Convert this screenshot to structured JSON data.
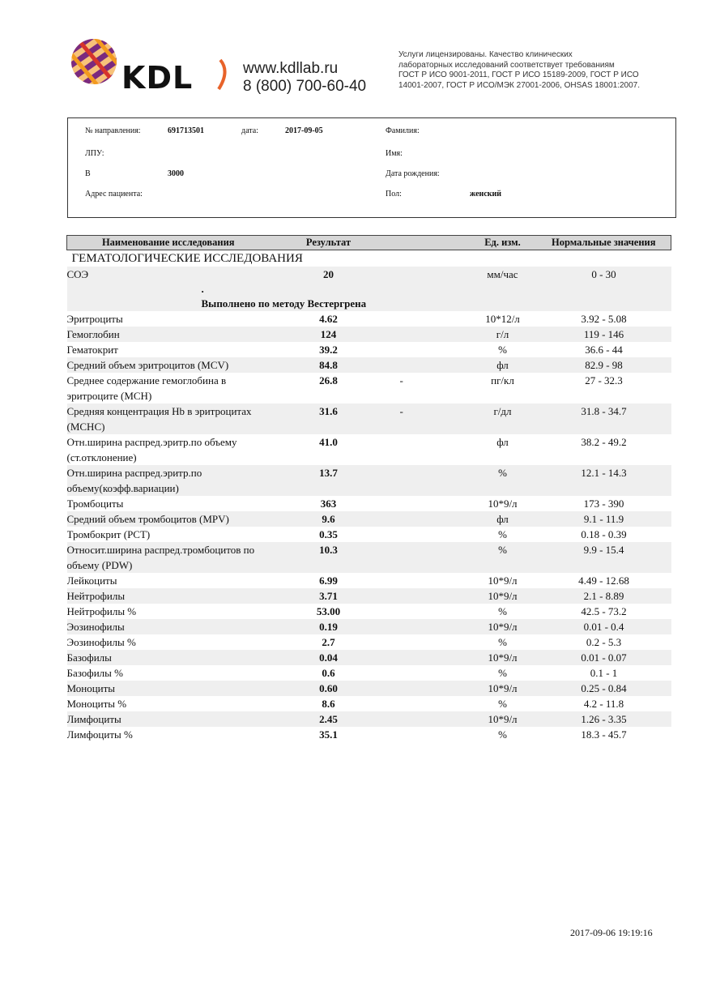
{
  "header": {
    "logo_text": "KDL",
    "website": "www.kdllab.ru",
    "phone": "8 (800) 700-60-40",
    "license_lines": [
      "Услуги лицензированы. Качество клинических",
      "лабораторных исследований соответствует требованиям",
      "ГОСТ Р ИСО 9001-2011, ГОСТ Р ИСО 15189-2009, ГОСТ Р ИСО",
      "14001-2007, ГОСТ Р ИСО/МЭК 27001-2006, OHSAS 18001:2007."
    ]
  },
  "info": {
    "referral_label": "№ направления:",
    "referral_value": "691713501",
    "date_label": "дата:",
    "date_value": "2017-09-05",
    "lpu_label": "ЛПУ:",
    "b_label": "В",
    "b_value": "3000",
    "address_label": "Адрес пациента:",
    "surname_label": "Фамилия:",
    "name_label": "Имя:",
    "birthdate_label": "Дата рождения:",
    "sex_label": "Пол:",
    "sex_value": "женский"
  },
  "table": {
    "headers": [
      "Наименование исследования",
      "Результат",
      "Ед. изм.",
      "Нормальные значения"
    ],
    "section": "ГЕМАТОЛОГИЧЕСКИЕ ИССЛЕДОВАНИЯ",
    "esr": {
      "name": "СОЭ",
      "result": "20",
      "unit": "мм/час",
      "norm": "0 - 30",
      "dot": ".",
      "note": "Выполнено по методу Вестергрена"
    },
    "rows": [
      {
        "name": "Эритроциты",
        "result": "4.62",
        "flag": "",
        "unit": "10*12/л",
        "norm": "3.92 - 5.08"
      },
      {
        "name": "Гемоглобин",
        "result": "124",
        "flag": "",
        "unit": "г/л",
        "norm": "119 - 146"
      },
      {
        "name": "Гематокрит",
        "result": "39.2",
        "flag": "",
        "unit": "%",
        "norm": "36.6 - 44"
      },
      {
        "name": "Средний объем эритроцитов (MCV)",
        "result": "84.8",
        "flag": "",
        "unit": "фл",
        "norm": "82.9 - 98"
      },
      {
        "name": "Среднее содержание гемоглобина в эритроците (MCH)",
        "result": "26.8",
        "flag": "-",
        "unit": "пг/кл",
        "norm": "27 - 32.3"
      },
      {
        "name": "Средняя концентрация Hb в эритроцитах (MCHC)",
        "result": "31.6",
        "flag": "-",
        "unit": "г/дл",
        "norm": "31.8 - 34.7"
      },
      {
        "name": "Отн.ширина распред.эритр.по объему (ст.отклонение)",
        "result": "41.0",
        "flag": "",
        "unit": "фл",
        "norm": "38.2 - 49.2"
      },
      {
        "name": "Отн.ширина распред.эритр.по объему(коэфф.вариации)",
        "result": "13.7",
        "flag": "",
        "unit": "%",
        "norm": "12.1 - 14.3"
      },
      {
        "name": "Тромбоциты",
        "result": "363",
        "flag": "",
        "unit": "10*9/л",
        "norm": "173 - 390"
      },
      {
        "name": "Средний объем тромбоцитов (MPV)",
        "result": "9.6",
        "flag": "",
        "unit": "фл",
        "norm": "9.1 - 11.9"
      },
      {
        "name": "Тромбокрит (PCT)",
        "result": "0.35",
        "flag": "",
        "unit": "%",
        "norm": "0.18 - 0.39"
      },
      {
        "name": "Относит.ширина распред.тромбоцитов по объему (PDW)",
        "result": "10.3",
        "flag": "",
        "unit": "%",
        "norm": "9.9 - 15.4"
      },
      {
        "name": "Лейкоциты",
        "result": "6.99",
        "flag": "",
        "unit": "10*9/л",
        "norm": "4.49 - 12.68"
      },
      {
        "name": "Нейтрофилы",
        "result": "3.71",
        "flag": "",
        "unit": "10*9/л",
        "norm": "2.1 - 8.89"
      },
      {
        "name": "Нейтрофилы %",
        "result": "53.00",
        "flag": "",
        "unit": "%",
        "norm": "42.5 - 73.2"
      },
      {
        "name": "Эозинофилы",
        "result": "0.19",
        "flag": "",
        "unit": "10*9/л",
        "norm": "0.01 - 0.4"
      },
      {
        "name": "Эозинофилы %",
        "result": "2.7",
        "flag": "",
        "unit": "%",
        "norm": "0.2 - 5.3"
      },
      {
        "name": "Базофилы",
        "result": "0.04",
        "flag": "",
        "unit": "10*9/л",
        "norm": "0.01 - 0.07"
      },
      {
        "name": "Базофилы %",
        "result": "0.6",
        "flag": "",
        "unit": "%",
        "norm": "0.1 - 1"
      },
      {
        "name": "Моноциты",
        "result": "0.60",
        "flag": "",
        "unit": "10*9/л",
        "norm": "0.25 - 0.84"
      },
      {
        "name": "Моноциты %",
        "result": "8.6",
        "flag": "",
        "unit": "%",
        "norm": "4.2 - 11.8"
      },
      {
        "name": "Лимфоциты",
        "result": "2.45",
        "flag": "",
        "unit": "10*9/л",
        "norm": "1.26 - 3.35"
      },
      {
        "name": "Лимфоциты %",
        "result": "35.1",
        "flag": "",
        "unit": "%",
        "norm": "18.3 - 45.7"
      }
    ]
  },
  "footer": {
    "printed_at": "2017-09-06 19:19:16"
  },
  "colors": {
    "logo_purple": "#7b2a7e",
    "logo_orange": "#f39a1e",
    "logo_red": "#d6342c",
    "row_shade": "#efefef",
    "header_bg": "#d6d6d6"
  }
}
